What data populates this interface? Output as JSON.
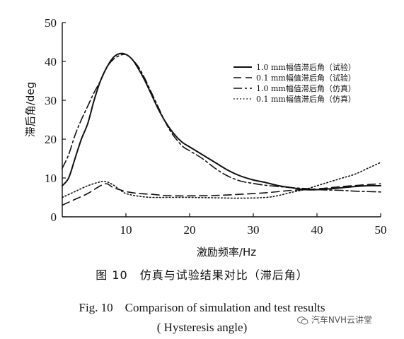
{
  "chart_data": {
    "type": "line",
    "title": "",
    "xlabel": "激励频率/Hz",
    "ylabel": "滞后角/deg",
    "xlim": [
      0,
      50
    ],
    "ylim": [
      0,
      50
    ],
    "xticks": [
      10,
      20,
      30,
      40,
      50
    ],
    "yticks": [
      0,
      10,
      20,
      30,
      40,
      50
    ],
    "grid": false,
    "legend_position": "top-right",
    "series": [
      {
        "name": "1.0 mm幅值滞后角（试验）",
        "style": "solid",
        "color": "#111111",
        "x": [
          0,
          1,
          2,
          3,
          4,
          5,
          6,
          7,
          8,
          9,
          10,
          11,
          12,
          13,
          14,
          15,
          16,
          17,
          18,
          19,
          20,
          22,
          24,
          26,
          28,
          30,
          32,
          34,
          36,
          38,
          40,
          42,
          44,
          46,
          48,
          50
        ],
        "y": [
          8,
          10,
          15,
          20,
          24,
          30,
          35,
          38.5,
          41,
          42,
          41.8,
          40.5,
          38,
          35,
          31.5,
          28,
          25,
          22.5,
          20.5,
          19,
          18,
          16,
          14,
          12,
          10.5,
          9.5,
          8.8,
          8,
          7.5,
          7,
          7,
          7.2,
          7.5,
          7.8,
          8,
          8
        ]
      },
      {
        "name": "0.1 mm幅值滞后角（试验）",
        "style": "dashed",
        "color": "#111111",
        "x": [
          0,
          2,
          4,
          6,
          7,
          8,
          9,
          10,
          12,
          14,
          16,
          18,
          20,
          24,
          28,
          32,
          36,
          40,
          44,
          48,
          50
        ],
        "y": [
          3,
          4.5,
          6,
          8,
          8.5,
          7.5,
          7,
          6.5,
          6,
          5.8,
          5.5,
          5.4,
          5.4,
          5.5,
          5.8,
          6.2,
          6.8,
          7.2,
          7.8,
          8.3,
          8.5
        ]
      },
      {
        "name": "1.0 mm幅值滞后角（仿真）",
        "style": "dashdot",
        "color": "#111111",
        "x": [
          0,
          1,
          2,
          3,
          4,
          5,
          6,
          7,
          8,
          9,
          10,
          11,
          12,
          13,
          14,
          15,
          16,
          17,
          18,
          19,
          20,
          22,
          24,
          26,
          28,
          30,
          32,
          34,
          36,
          38,
          40,
          42,
          44,
          46,
          48,
          50
        ],
        "y": [
          12.5,
          16,
          21,
          25,
          28.5,
          32,
          35,
          38.5,
          40.5,
          41.5,
          41.8,
          40.5,
          38.5,
          35.5,
          32,
          28.5,
          25,
          22,
          19.8,
          18,
          17,
          15,
          12.5,
          10.5,
          9.2,
          8.6,
          8.1,
          7.8,
          7.5,
          7.3,
          7,
          6.9,
          6.8,
          6.6,
          6.5,
          6.4
        ]
      },
      {
        "name": "0.1 mm幅值滞后角（仿真）",
        "style": "dotted",
        "color": "#111111",
        "x": [
          0,
          2,
          4,
          6,
          7,
          8,
          9,
          10,
          12,
          14,
          16,
          18,
          20,
          24,
          28,
          32,
          34,
          36,
          38,
          40,
          42,
          44,
          46,
          48,
          50
        ],
        "y": [
          5,
          6.5,
          8,
          9,
          9,
          8.2,
          7,
          6,
          5.3,
          5,
          5,
          5,
          5,
          4.9,
          4.8,
          5,
          5.5,
          6.3,
          7,
          8,
          9,
          10,
          11,
          12.5,
          14
        ]
      }
    ]
  },
  "caption": {
    "cn": "图 10　仿真与试验结果对比（滞后角）",
    "en_line1": "Fig. 10　Comparison of simulation and test results",
    "en_line2": "( Hysteresis angle)"
  },
  "watermark": {
    "text": "汽车NVH云讲堂",
    "icon": "wechat-icon"
  }
}
